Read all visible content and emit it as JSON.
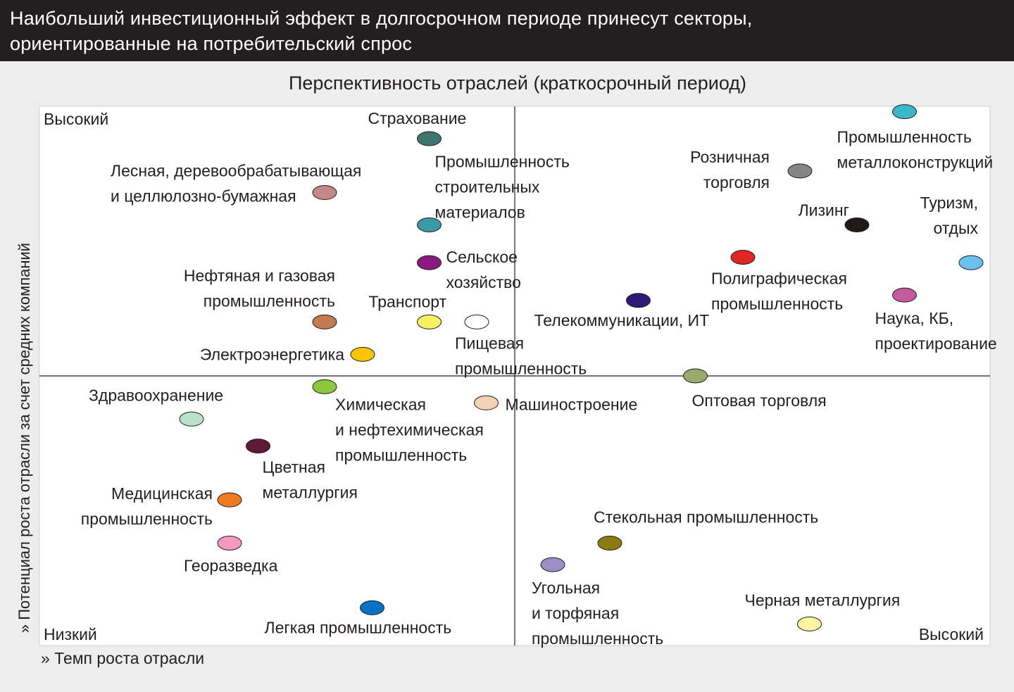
{
  "header": {
    "line1": "Наибольший инвестиционный эффект в долгосрочном периоде принесут секторы,",
    "line2": "ориентированные на потребительский спрос"
  },
  "chart_data": {
    "type": "scatter",
    "title": "Перспективность отраслей (краткосрочный период)",
    "xlabel": "» Темп роста отрасли",
    "ylabel": "» Потенциал роста отрасли за счет средних компаний",
    "xlim": [
      0,
      1
    ],
    "ylim": [
      0,
      1
    ],
    "corner_labels": {
      "top_left": "Высокий",
      "bottom_left": "Низкий",
      "bottom_right": "Высокий"
    },
    "points": [
      {
        "label": [
          "Страхование"
        ],
        "x": 0.41,
        "y": 0.94,
        "color": "#3d7470"
      },
      {
        "label": [
          "Лесная, деревообрабатывающая",
          "и целлюлозно-бумажная"
        ],
        "x": 0.3,
        "y": 0.84,
        "color": "#c4878a"
      },
      {
        "label": [
          "Промышленность",
          "строительных",
          "материалов"
        ],
        "x": 0.41,
        "y": 0.78,
        "color": "#3b9aa6"
      },
      {
        "label": [
          "Сельское",
          "хозяйство"
        ],
        "x": 0.41,
        "y": 0.71,
        "color": "#8b1a7e"
      },
      {
        "label": [
          "Нефтяная и газовая",
          "промышленность"
        ],
        "x": 0.3,
        "y": 0.6,
        "color": "#c47a50"
      },
      {
        "label": [
          "Транспорт"
        ],
        "x": 0.41,
        "y": 0.6,
        "color": "#f6f062"
      },
      {
        "label": [
          "Пищевая",
          "промышленность"
        ],
        "x": 0.46,
        "y": 0.6,
        "color": "#ffffff"
      },
      {
        "label": [
          "Электроэнергетика"
        ],
        "x": 0.34,
        "y": 0.54,
        "color": "#f7c600"
      },
      {
        "label": [
          "Химическая",
          "и нефтехимическая",
          "промышленность"
        ],
        "x": 0.3,
        "y": 0.48,
        "color": "#8cc63f"
      },
      {
        "label": [
          "Здравоохранение"
        ],
        "x": 0.16,
        "y": 0.42,
        "color": "#b8e3c8"
      },
      {
        "label": [
          "Машиностроение"
        ],
        "x": 0.47,
        "y": 0.45,
        "color": "#f2d3b8"
      },
      {
        "label": [
          "Цветная",
          "металлургия"
        ],
        "x": 0.23,
        "y": 0.37,
        "color": "#5e1a36"
      },
      {
        "label": [
          "Медицинская",
          "промышленность"
        ],
        "x": 0.2,
        "y": 0.27,
        "color": "#ee7a22"
      },
      {
        "label": [
          "Георазведка"
        ],
        "x": 0.2,
        "y": 0.19,
        "color": "#f49ac1"
      },
      {
        "label": [
          "Легкая промышленность"
        ],
        "x": 0.35,
        "y": 0.07,
        "color": "#0a72c4"
      },
      {
        "label": [
          "Угольная",
          "и торфяная",
          "промышленность"
        ],
        "x": 0.54,
        "y": 0.15,
        "color": "#9b8fc7"
      },
      {
        "label": [
          "Стекольная промышленность"
        ],
        "x": 0.6,
        "y": 0.19,
        "color": "#8a7c10"
      },
      {
        "label": [
          "Черная металлургия"
        ],
        "x": 0.81,
        "y": 0.04,
        "color": "#fbf4a0"
      },
      {
        "label": [
          "Оптовая торговля"
        ],
        "x": 0.69,
        "y": 0.5,
        "color": "#9aaa6a"
      },
      {
        "label": [
          "Телекоммуникации, ИТ"
        ],
        "x": 0.63,
        "y": 0.64,
        "color": "#2b1a78"
      },
      {
        "label": [
          "Полиграфическая",
          "промышленность"
        ],
        "x": 0.74,
        "y": 0.72,
        "color": "#e12525"
      },
      {
        "label": [
          "Лизинг"
        ],
        "x": 0.86,
        "y": 0.78,
        "color": "#1d1a1a"
      },
      {
        "label": [
          "Розничная",
          "торговля"
        ],
        "x": 0.8,
        "y": 0.88,
        "color": "#858585"
      },
      {
        "label": [
          "Промышленность",
          "металлоконструкций"
        ],
        "x": 0.91,
        "y": 0.99,
        "color": "#3ab7c9"
      },
      {
        "label": [
          "Туризм,",
          "отдых"
        ],
        "x": 0.98,
        "y": 0.71,
        "color": "#6cc0ee"
      },
      {
        "label": [
          "Наука, КБ,",
          "проектирование"
        ],
        "x": 0.91,
        "y": 0.65,
        "color": "#c35b9a"
      }
    ]
  }
}
